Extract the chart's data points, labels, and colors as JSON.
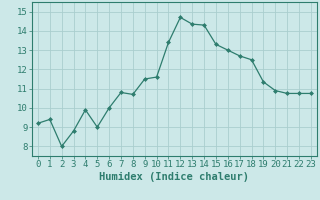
{
  "x": [
    0,
    1,
    2,
    3,
    4,
    5,
    6,
    7,
    8,
    9,
    10,
    11,
    12,
    13,
    14,
    15,
    16,
    17,
    18,
    19,
    20,
    21,
    22,
    23
  ],
  "y": [
    9.2,
    9.4,
    8.0,
    8.8,
    9.9,
    9.0,
    10.0,
    10.8,
    10.7,
    11.5,
    11.6,
    13.4,
    14.7,
    14.35,
    14.3,
    13.3,
    13.0,
    12.7,
    12.5,
    11.35,
    10.9,
    10.75,
    10.75,
    10.75
  ],
  "line_color": "#2e7d6e",
  "marker": "D",
  "marker_size": 2.0,
  "bg_color": "#cce8e8",
  "grid_color": "#aacece",
  "xlabel": "Humidex (Indice chaleur)",
  "ylim": [
    7.5,
    15.5
  ],
  "yticks": [
    8,
    9,
    10,
    11,
    12,
    13,
    14,
    15
  ],
  "xticks": [
    0,
    1,
    2,
    3,
    4,
    5,
    6,
    7,
    8,
    9,
    10,
    11,
    12,
    13,
    14,
    15,
    16,
    17,
    18,
    19,
    20,
    21,
    22,
    23
  ],
  "tick_color": "#2e7d6e",
  "label_fontsize": 7.5,
  "tick_fontsize": 6.5
}
